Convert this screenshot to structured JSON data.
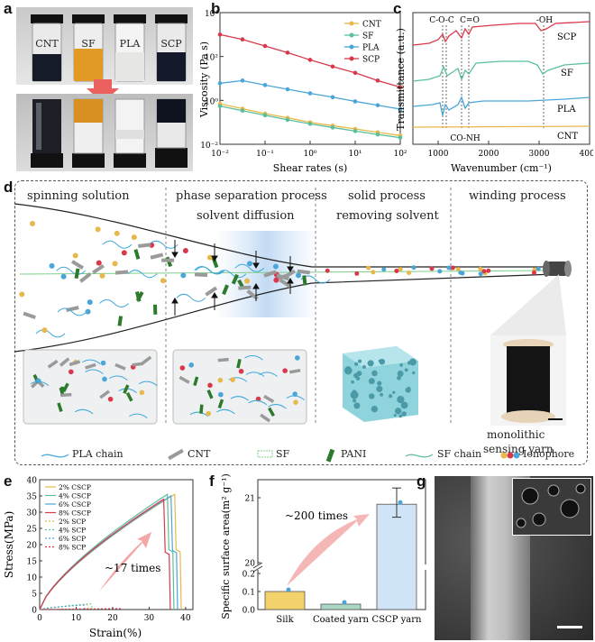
{
  "panel_labels": {
    "a": "a",
    "b": "b",
    "c": "c",
    "d": "d",
    "e": "e",
    "f": "f",
    "g": "g"
  },
  "panel_a": {
    "vials": [
      "CNT",
      "SF",
      "PLA",
      "SCP"
    ]
  },
  "colors": {
    "cnt": "#e8b84a",
    "sf": "#5bbf9c",
    "pla": "#4aa6d8",
    "scp": "#d9384a",
    "pani": "#2d7a2d",
    "pla_chain": "#3fa9d9"
  },
  "chart_data": [
    {
      "id": "b",
      "type": "line",
      "xlabel": "Shear rates (s)",
      "ylabel": "Viscosity (Pa s)",
      "xscale": "log",
      "yscale": "log",
      "xlim": [
        0.01,
        100
      ],
      "ylim": [
        0.01,
        10000
      ],
      "xticks": [
        "10⁻²",
        "10⁻¹",
        "10⁰",
        "10¹",
        "10²"
      ],
      "yticks": [
        "10⁻²",
        "10⁰",
        "10²",
        "10⁴"
      ],
      "x": [
        0.01,
        0.0316,
        0.1,
        0.316,
        1,
        3.16,
        10,
        31.6,
        100
      ],
      "series": [
        {
          "name": "CNT",
          "values": [
            0.7,
            0.42,
            0.25,
            0.16,
            0.1,
            0.07,
            0.05,
            0.035,
            0.025
          ]
        },
        {
          "name": "SF",
          "values": [
            0.55,
            0.34,
            0.21,
            0.13,
            0.085,
            0.058,
            0.04,
            0.028,
            0.02
          ]
        },
        {
          "name": "PLA",
          "values": [
            6,
            8,
            5,
            3.2,
            2.1,
            1.4,
            0.9,
            0.6,
            0.4
          ]
        },
        {
          "name": "SCP",
          "values": [
            1000,
            600,
            300,
            150,
            70,
            35,
            18,
            8,
            4
          ]
        }
      ]
    },
    {
      "id": "c",
      "type": "line",
      "xlabel": "Wavenumber (cm⁻¹)",
      "ylabel": "Transmittance (a.u.)",
      "xlim": [
        500,
        4000
      ],
      "xticks": [
        "1000",
        "2000",
        "3000",
        "4000"
      ],
      "annotations": [
        "C-O-C",
        "C=O",
        "-OH",
        "CO-NH"
      ],
      "series": [
        {
          "name": "SCP"
        },
        {
          "name": "SF"
        },
        {
          "name": "PLA"
        },
        {
          "name": "CNT"
        }
      ]
    },
    {
      "id": "e",
      "type": "line",
      "xlabel": "Strain(%)",
      "ylabel": "Stress(MPa)",
      "xlim": [
        0,
        42
      ],
      "ylim": [
        0,
        40
      ],
      "xticks": [
        "0",
        "10",
        "20",
        "30",
        "40"
      ],
      "yticks": [
        "0",
        "5",
        "10",
        "15",
        "20",
        "25",
        "30",
        "35",
        "40"
      ],
      "annotation": "~17 times",
      "series": [
        {
          "name": "2% CSCP",
          "break_strain": 37,
          "break_stress": 35.5
        },
        {
          "name": "4% CSCP",
          "break_strain": 35,
          "break_stress": 35.5
        },
        {
          "name": "6% CSCP",
          "break_strain": 36,
          "break_stress": 35
        },
        {
          "name": "8% CSCP",
          "break_strain": 34,
          "break_stress": 34
        },
        {
          "name": "2% SCP",
          "break_strain": 13,
          "break_stress": 1.5
        },
        {
          "name": "4% SCP",
          "break_strain": 14,
          "break_stress": 1.8
        },
        {
          "name": "6% SCP",
          "break_strain": 12,
          "break_stress": 1.4
        },
        {
          "name": "8% SCP",
          "break_strain": 22,
          "break_stress": 0.3
        }
      ]
    },
    {
      "id": "f",
      "type": "bar",
      "ylabel": "Specific surface area(m² g⁻¹)",
      "categories": [
        "Silk",
        "Coated yarn",
        "CSCP yarn"
      ],
      "values": [
        0.1,
        0.03,
        20.9
      ],
      "yticks_low": [
        "0.0",
        "0.1",
        "0.2"
      ],
      "yticks_high": [
        "20",
        "21"
      ],
      "annotation": "~200 times"
    }
  ],
  "panel_d": {
    "stages": [
      "spinning solution",
      "phase separation process",
      "solvent diffusion",
      "solid process",
      "removing solvent",
      "winding process"
    ],
    "yarn_label_1": "monolithic",
    "yarn_label_2": "sensing yarn",
    "legend": [
      "PLA chain",
      "CNT",
      "SF",
      "PANI",
      "SF chain",
      "Ionophore"
    ]
  }
}
